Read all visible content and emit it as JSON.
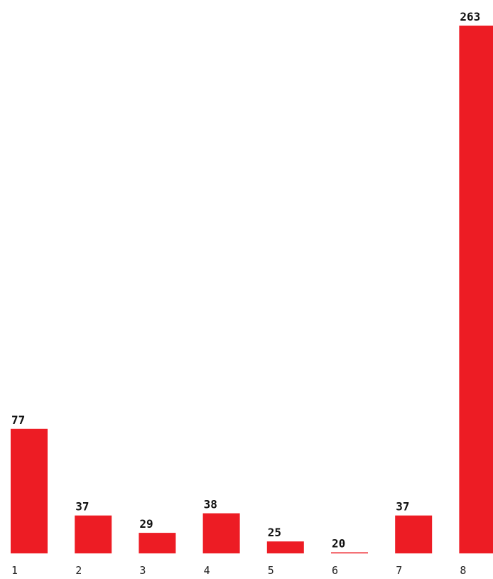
{
  "chart_data": {
    "type": "bar",
    "categories": [
      "1",
      "2",
      "3",
      "4",
      "5",
      "6",
      "7",
      "8"
    ],
    "values": [
      77,
      37,
      29,
      38,
      25,
      20,
      37,
      263
    ],
    "data_labels": [
      "77",
      "37",
      "29",
      "38",
      "25",
      "20",
      "37",
      "263"
    ],
    "title": "",
    "xlabel": "",
    "ylabel": "",
    "ylim": [
      19.5,
      263
    ],
    "grid": false,
    "legend": "none",
    "bar_color": "#ed1c24",
    "text_color": "#111111"
  }
}
